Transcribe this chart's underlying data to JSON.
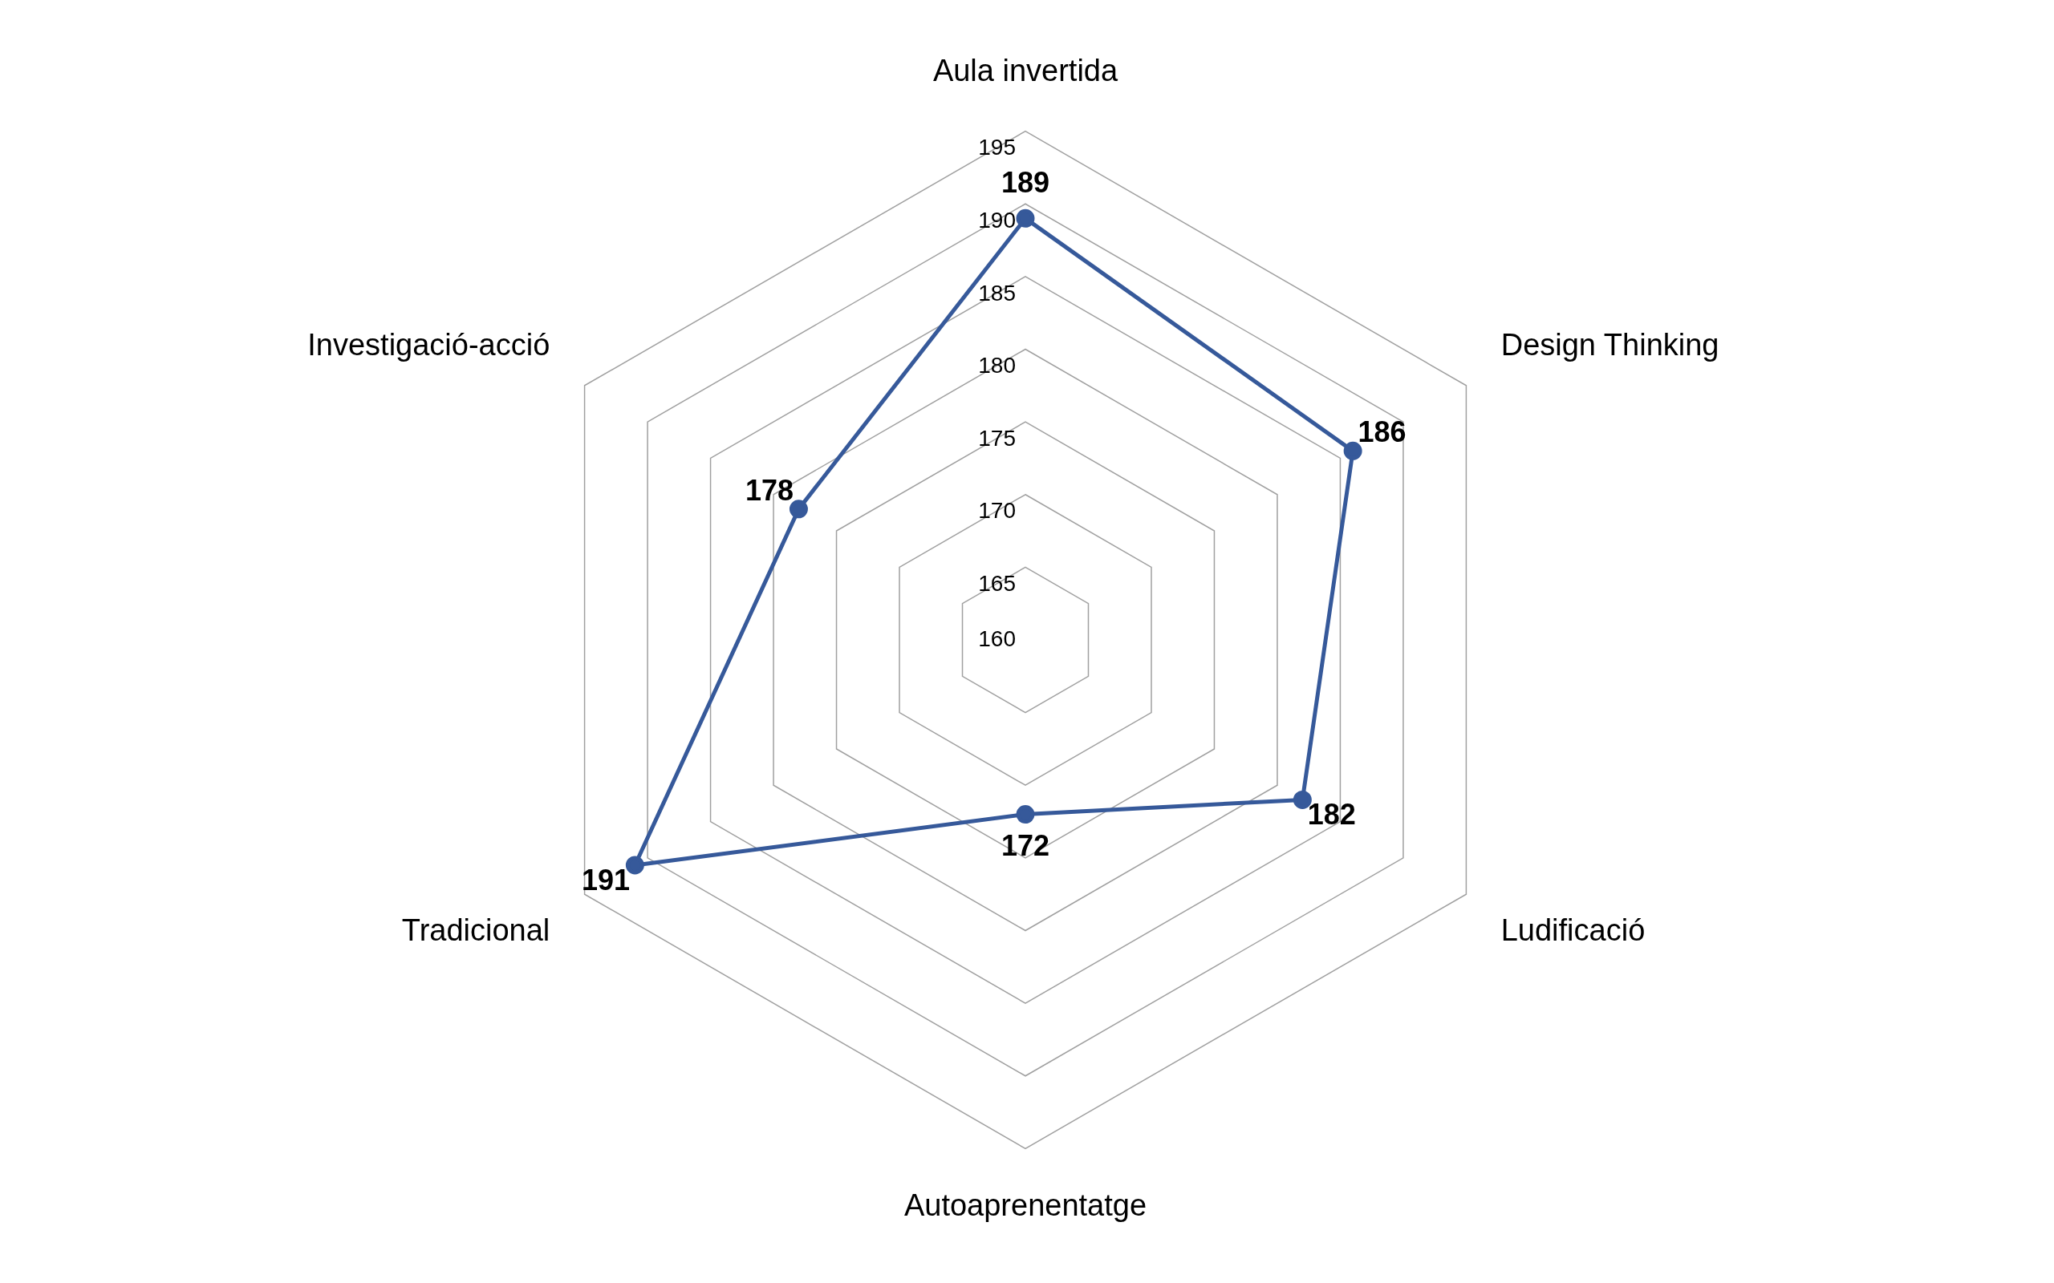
{
  "chart_data": {
    "type": "radar",
    "categories": [
      "Aula invertida",
      "Design Thinking",
      "Ludificació",
      "Autoaprenentatge",
      "Tradicional",
      "Investigació-acció"
    ],
    "series": [
      {
        "color": "#36599a",
        "values": [
          189,
          186,
          182,
          172,
          191,
          178
        ]
      }
    ],
    "ylim": [
      160,
      195
    ],
    "yticks": [
      160,
      165,
      170,
      175,
      180,
      185,
      190,
      195
    ],
    "data_labels": true,
    "marker": "circle",
    "grid": true,
    "legend": false
  }
}
